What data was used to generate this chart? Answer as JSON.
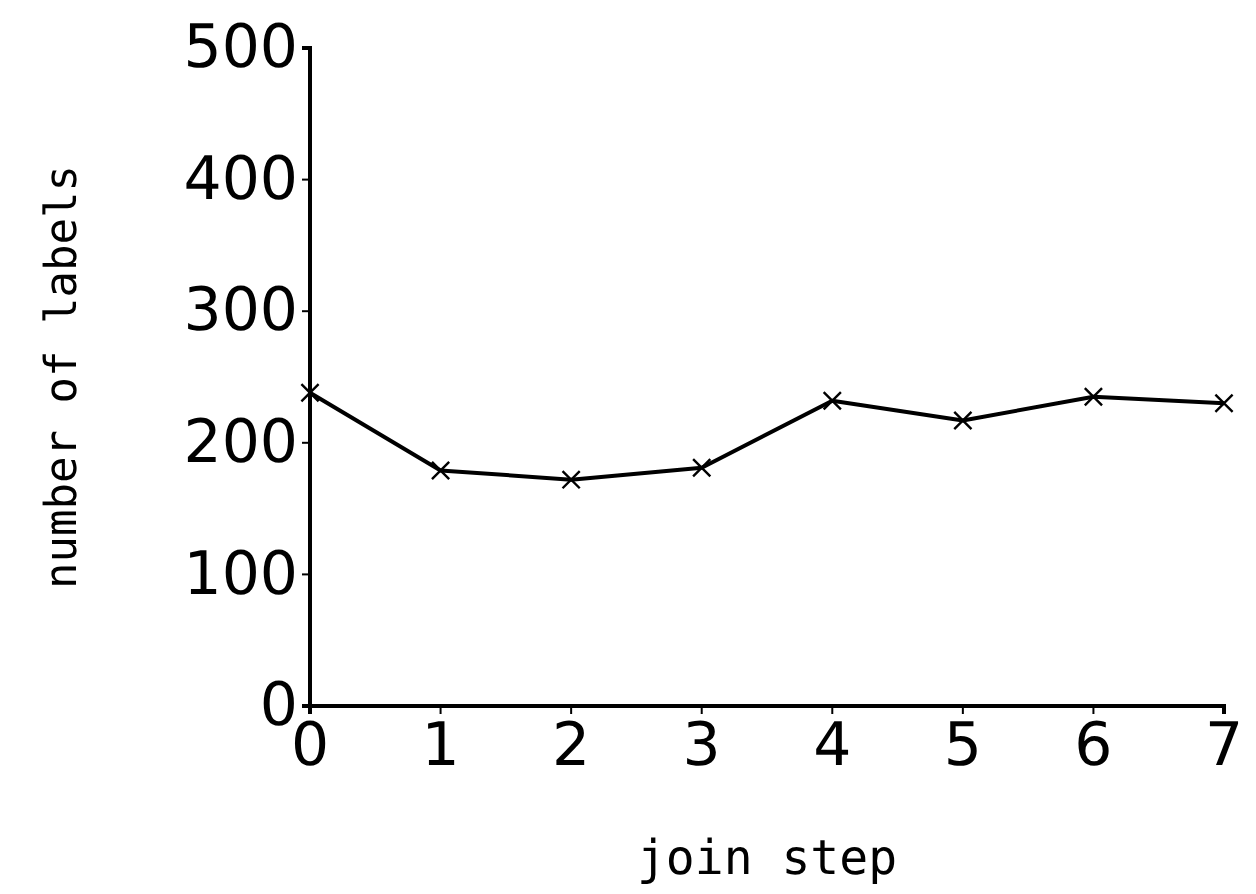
{
  "chart_data": {
    "type": "line",
    "xlabel": "join step",
    "ylabel": "number of labels",
    "x": [
      0,
      1,
      2,
      3,
      4,
      5,
      6,
      7
    ],
    "series": [
      {
        "color": "#000000",
        "values": [
          238,
          179,
          172,
          181,
          232,
          217,
          235,
          230
        ]
      }
    ],
    "xlim": [
      0,
      7
    ],
    "xticks": [
      0,
      1,
      2,
      3,
      4,
      5,
      6,
      7
    ],
    "ylim": [
      0,
      500
    ],
    "yticks": [
      0,
      100,
      200,
      300,
      400,
      500
    ],
    "marker": "cross",
    "line_style": "solid",
    "grid": false
  }
}
